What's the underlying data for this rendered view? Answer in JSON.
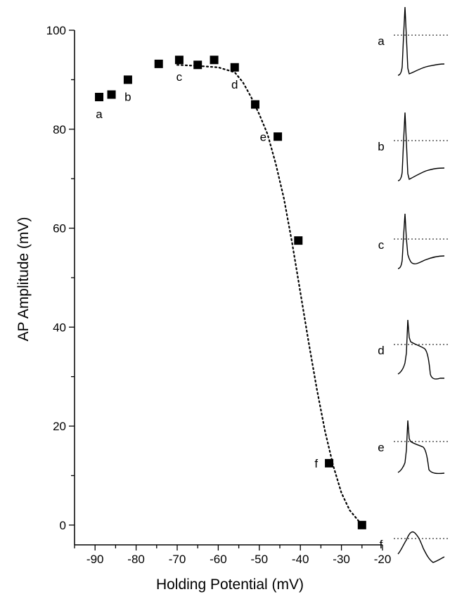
{
  "chart_data": {
    "type": "scatter",
    "xlabel": "Holding Potential (mV)",
    "ylabel": "AP Amplitude (mV)",
    "xlim": [
      -95,
      -20
    ],
    "ylim": [
      -4,
      100
    ],
    "xticks": [
      -90,
      -80,
      -70,
      -60,
      -50,
      -40,
      -30,
      -20
    ],
    "xtick_labels": [
      "-90",
      "-80",
      "-70",
      "-60",
      "-50",
      "-40",
      "-30",
      "-20"
    ],
    "yticks": [
      0,
      20,
      40,
      60,
      80,
      100
    ],
    "ytick_labels": [
      "0",
      "20",
      "40",
      "60",
      "80",
      "100"
    ],
    "series": [
      {
        "marker": "square",
        "color": "#000000",
        "x": [
          -89,
          -86,
          -82,
          -74.5,
          -69.5,
          -65,
          -61,
          -56,
          -51,
          -45.5,
          -40.5,
          -33,
          -25
        ],
        "y": [
          86.5,
          87,
          90,
          93.2,
          94,
          93,
          94,
          92.5,
          85,
          78.5,
          57.5,
          12.5,
          0
        ]
      }
    ],
    "fit": {
      "style": "dotted",
      "color": "#000000",
      "x": [
        -70,
        -65,
        -60,
        -56,
        -54,
        -52,
        -50,
        -48,
        -46,
        -44,
        -42,
        -40,
        -38,
        -36,
        -34,
        -32,
        -30,
        -28,
        -26,
        -25
      ],
      "y": [
        93,
        92.8,
        92.5,
        91.5,
        89.5,
        86.5,
        83,
        79,
        73,
        66,
        57,
        47,
        37,
        27.5,
        19,
        12,
        6.5,
        3,
        1,
        0
      ]
    },
    "point_labels": [
      {
        "text": "a",
        "x": -89,
        "y": 86.5,
        "pos": "below"
      },
      {
        "text": "b",
        "x": -82,
        "y": 90,
        "pos": "below"
      },
      {
        "text": "c",
        "x": -69.5,
        "y": 94,
        "pos": "below"
      },
      {
        "text": "d",
        "x": -56,
        "y": 92.5,
        "pos": "below"
      },
      {
        "text": "e",
        "x": -45.5,
        "y": 78.5,
        "pos": "left"
      },
      {
        "text": "f",
        "x": -33,
        "y": 12.5,
        "pos": "left"
      }
    ],
    "insets": [
      {
        "label": "a"
      },
      {
        "label": "b"
      },
      {
        "label": "c"
      },
      {
        "label": "d"
      },
      {
        "label": "e"
      },
      {
        "label": "f"
      }
    ]
  }
}
